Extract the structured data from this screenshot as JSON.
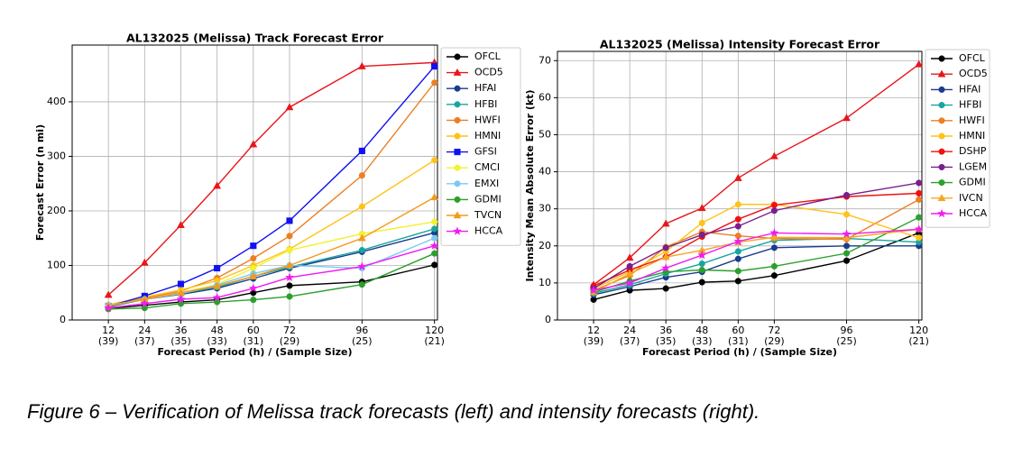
{
  "chart_data": [
    {
      "type": "line",
      "title": "AL132025 (Melissa) Track Forecast Error",
      "xlabel": "Forecast Period (h) / (Sample Size)",
      "ylabel": "Forecast Error (n mi)",
      "x": [
        12,
        24,
        36,
        48,
        60,
        72,
        96,
        120
      ],
      "xlim": [
        0,
        121
      ],
      "xticks": [
        12,
        24,
        36,
        48,
        60,
        72,
        96,
        120
      ],
      "xtick_sublabels": [
        "(39)",
        "(37)",
        "(35)",
        "(33)",
        "(31)",
        "(29)",
        "(25)",
        "(21)"
      ],
      "ylim": [
        0,
        504
      ],
      "yticks": [
        0,
        100,
        200,
        300,
        400
      ],
      "grid": true,
      "legend": "outside right",
      "series": [
        {
          "name": "OFCL",
          "color": "#000000",
          "marker": "circle",
          "values": [
            21,
            27,
            33,
            37,
            50,
            63,
            70,
            101
          ]
        },
        {
          "name": "OCD5",
          "color": "#e8161b",
          "marker": "triangle",
          "values": [
            46,
            105,
            174,
            246,
            322,
            390,
            465,
            472
          ]
        },
        {
          "name": "HFAI",
          "color": "#1b3c8c",
          "marker": "circle",
          "values": [
            24,
            38,
            47,
            58,
            76,
            95,
            125,
            160
          ]
        },
        {
          "name": "HFBI",
          "color": "#18a5a0",
          "marker": "circle",
          "values": [
            25,
            38,
            49,
            60,
            80,
            97,
            128,
            167
          ]
        },
        {
          "name": "HWFI",
          "color": "#ec7f22",
          "marker": "circle",
          "values": [
            27,
            40,
            53,
            77,
            113,
            154,
            265,
            435
          ]
        },
        {
          "name": "HMNI",
          "color": "#ffc218",
          "marker": "circle",
          "values": [
            28,
            42,
            55,
            72,
            100,
            130,
            208,
            293
          ]
        },
        {
          "name": "GFSI",
          "color": "#1010f0",
          "marker": "square",
          "values": [
            25,
            44,
            66,
            95,
            136,
            182,
            310,
            465
          ]
        },
        {
          "name": "CMCI",
          "color": "#f2f22e",
          "marker": "circle",
          "values": [
            26,
            38,
            50,
            65,
            95,
            128,
            158,
            180
          ]
        },
        {
          "name": "EMXI",
          "color": "#7cc8f2",
          "marker": "circle",
          "values": [
            27,
            38,
            48,
            64,
            85,
            100,
            95,
            150
          ]
        },
        {
          "name": "GDMI",
          "color": "#2ca02c",
          "marker": "circle",
          "values": [
            20,
            22,
            30,
            33,
            37,
            43,
            65,
            122
          ]
        },
        {
          "name": "TVCN",
          "color": "#f39a1c",
          "marker": "triangle",
          "values": [
            26,
            38,
            50,
            62,
            80,
            100,
            150,
            225
          ]
        },
        {
          "name": "HCCA",
          "color": "#f01cf0",
          "marker": "star",
          "values": [
            22,
            30,
            38,
            41,
            58,
            78,
            98,
            136
          ]
        }
      ]
    },
    {
      "type": "line",
      "title": "AL132025 (Melissa) Intensity Forecast Error",
      "xlabel": "Forecast Period (h) / (Sample Size)",
      "ylabel": "Intensity Mean Absolute Error (kt)",
      "x": [
        12,
        24,
        36,
        48,
        60,
        72,
        96,
        120
      ],
      "xlim": [
        0,
        121
      ],
      "xticks": [
        12,
        24,
        36,
        48,
        60,
        72,
        96,
        120
      ],
      "xtick_sublabels": [
        "(39)",
        "(37)",
        "(35)",
        "(33)",
        "(31)",
        "(29)",
        "(25)",
        "(21)"
      ],
      "ylim": [
        0,
        72.5
      ],
      "yticks": [
        0,
        10,
        20,
        30,
        40,
        50,
        60,
        70
      ],
      "grid": true,
      "legend": "outside right",
      "series": [
        {
          "name": "OFCL",
          "color": "#000000",
          "marker": "circle",
          "values": [
            5.5,
            8,
            8.5,
            10.2,
            10.5,
            12,
            16,
            23.5
          ]
        },
        {
          "name": "OCD5",
          "color": "#e8161b",
          "marker": "triangle",
          "values": [
            9.5,
            16.8,
            26,
            30.2,
            38.3,
            44.2,
            54.5,
            69
          ]
        },
        {
          "name": "HFAI",
          "color": "#1b3c8c",
          "marker": "circle",
          "values": [
            6.8,
            9,
            11.5,
            13,
            16.5,
            19.5,
            20,
            20
          ]
        },
        {
          "name": "HFBI",
          "color": "#18a5a0",
          "marker": "circle",
          "values": [
            7.2,
            9.5,
            12.5,
            15.2,
            18.5,
            21.5,
            22,
            21
          ]
        },
        {
          "name": "HWFI",
          "color": "#ec7f22",
          "marker": "circle",
          "values": [
            8,
            12,
            19.7,
            23.8,
            22.7,
            22,
            21.8,
            32.5
          ]
        },
        {
          "name": "HMNI",
          "color": "#ffc218",
          "marker": "circle",
          "values": [
            8.5,
            13,
            18.5,
            26.2,
            31.2,
            31.2,
            28.5,
            22.2
          ]
        },
        {
          "name": "DSHP",
          "color": "#f21010",
          "marker": "circle",
          "values": [
            9.2,
            13.5,
            17,
            22.5,
            27.2,
            31,
            33.3,
            34.2
          ]
        },
        {
          "name": "LGEM",
          "color": "#7a1f8c",
          "marker": "circle",
          "values": [
            8.5,
            14.5,
            19.5,
            23,
            25.3,
            29.5,
            33.7,
            37
          ]
        },
        {
          "name": "GDMI",
          "color": "#2ca02c",
          "marker": "circle",
          "values": [
            7.5,
            10.5,
            13,
            13.5,
            13.2,
            14.5,
            18,
            27.7
          ]
        },
        {
          "name": "IVCN",
          "color": "#f5a623",
          "marker": "triangle",
          "values": [
            7.5,
            12.5,
            17,
            18.8,
            21,
            22.3,
            22.2,
            24.5
          ]
        },
        {
          "name": "HCCA",
          "color": "#f01cf0",
          "marker": "star",
          "values": [
            8,
            10,
            14,
            17.5,
            21.2,
            23.5,
            23.2,
            24.5
          ]
        }
      ]
    }
  ],
  "caption": "Figure 6 – Verification of Melissa track forecasts (left) and intensity forecasts (right)."
}
